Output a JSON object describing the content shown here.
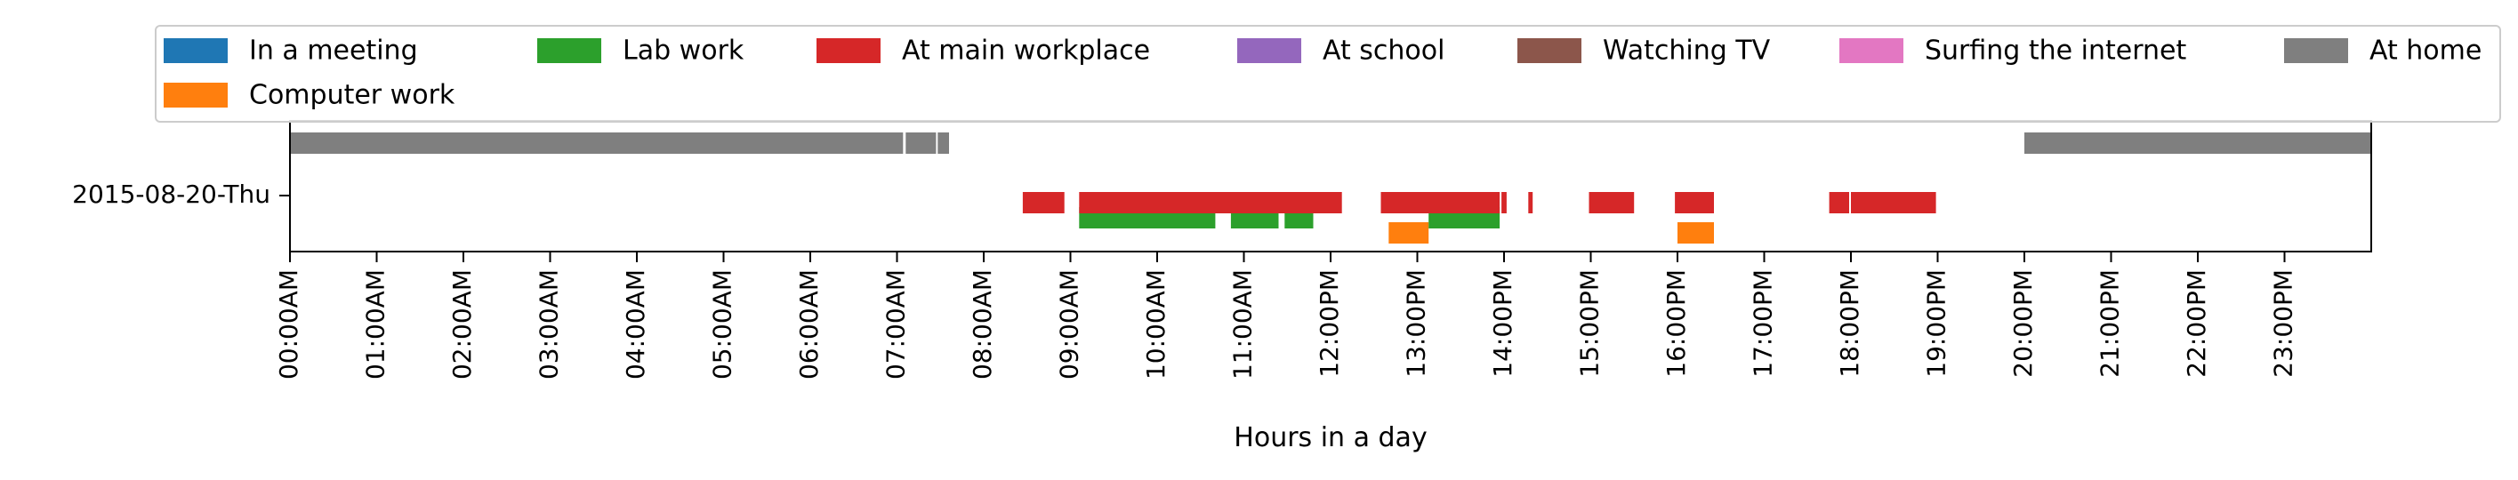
{
  "chart_data": {
    "type": "gantt",
    "title": "",
    "xlabel": "Hours in a day",
    "ylabel": "",
    "xlim": [
      0,
      24
    ],
    "rows": [
      "2015-08-20-Thu"
    ],
    "x_ticks": [
      {
        "hour": 0,
        "label": "00:00AM"
      },
      {
        "hour": 1,
        "label": "01:00AM"
      },
      {
        "hour": 2,
        "label": "02:00AM"
      },
      {
        "hour": 3,
        "label": "03:00AM"
      },
      {
        "hour": 4,
        "label": "04:00AM"
      },
      {
        "hour": 5,
        "label": "05:00AM"
      },
      {
        "hour": 6,
        "label": "06:00AM"
      },
      {
        "hour": 7,
        "label": "07:00AM"
      },
      {
        "hour": 8,
        "label": "08:00AM"
      },
      {
        "hour": 9,
        "label": "09:00AM"
      },
      {
        "hour": 10,
        "label": "10:00AM"
      },
      {
        "hour": 11,
        "label": "11:00AM"
      },
      {
        "hour": 12,
        "label": "12:00PM"
      },
      {
        "hour": 13,
        "label": "13:00PM"
      },
      {
        "hour": 14,
        "label": "14:00PM"
      },
      {
        "hour": 15,
        "label": "15:00PM"
      },
      {
        "hour": 16,
        "label": "16:00PM"
      },
      {
        "hour": 17,
        "label": "17:00PM"
      },
      {
        "hour": 18,
        "label": "18:00PM"
      },
      {
        "hour": 19,
        "label": "19:00PM"
      },
      {
        "hour": 20,
        "label": "20:00PM"
      },
      {
        "hour": 21,
        "label": "21:00PM"
      },
      {
        "hour": 22,
        "label": "22:00PM"
      },
      {
        "hour": 23,
        "label": "23:00PM"
      }
    ],
    "legend_position": "top",
    "legend": [
      {
        "name": "In a meeting",
        "color": "#1f77b4"
      },
      {
        "name": "Computer work",
        "color": "#ff7f0e"
      },
      {
        "name": "Lab work",
        "color": "#2ca02c"
      },
      {
        "name": "At main workplace",
        "color": "#d62728"
      },
      {
        "name": "At school",
        "color": "#9467bd"
      },
      {
        "name": "Watching TV",
        "color": "#8c564b"
      },
      {
        "name": "Surfing the internet",
        "color": "#e377c2"
      },
      {
        "name": "At home",
        "color": "#7f7f7f"
      }
    ],
    "series": [
      {
        "name": "In a meeting",
        "color": "#1f77b4",
        "lane": 0,
        "intervals": []
      },
      {
        "name": "Computer work",
        "color": "#ff7f0e",
        "lane": 0,
        "intervals": [
          [
            12.67,
            13.13
          ],
          [
            16.0,
            16.42
          ]
        ]
      },
      {
        "name": "Lab work",
        "color": "#2ca02c",
        "lane": 1,
        "intervals": [
          [
            9.1,
            10.67
          ],
          [
            10.85,
            11.4
          ],
          [
            11.47,
            11.8
          ],
          [
            13.13,
            13.95
          ]
        ]
      },
      {
        "name": "At main workplace",
        "color": "#d62728",
        "lane": 2,
        "intervals": [
          [
            8.45,
            8.93
          ],
          [
            9.1,
            12.13
          ],
          [
            12.58,
            13.95
          ],
          [
            13.97,
            14.03
          ],
          [
            14.28,
            14.33
          ],
          [
            14.98,
            15.5
          ],
          [
            15.97,
            16.42
          ],
          [
            17.75,
            17.98
          ],
          [
            18.0,
            18.98
          ]
        ]
      },
      {
        "name": "At school",
        "color": "#9467bd",
        "lane": 3,
        "intervals": []
      },
      {
        "name": "Watching TV",
        "color": "#8c564b",
        "lane": 4,
        "intervals": []
      },
      {
        "name": "Surfing the internet",
        "color": "#e377c2",
        "lane": 5,
        "intervals": []
      },
      {
        "name": "At home",
        "color": "#7f7f7f",
        "lane": 6,
        "intervals": [
          [
            0.0,
            7.07
          ],
          [
            7.1,
            7.45
          ],
          [
            7.47,
            7.6
          ],
          [
            20.0,
            24.0
          ]
        ]
      }
    ]
  }
}
